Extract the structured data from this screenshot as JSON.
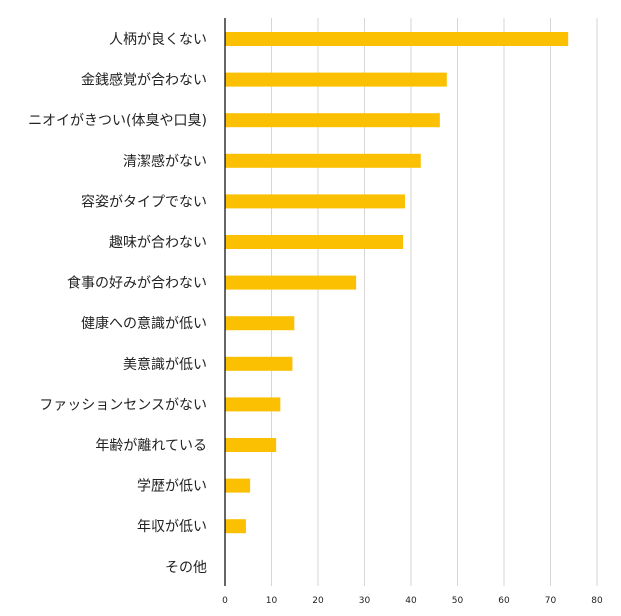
{
  "chart_data": {
    "type": "bar",
    "orientation": "horizontal",
    "categories": [
      "人柄が良くない",
      "金銭感覚が合わない",
      "ニオイがきつい(体臭や口臭)",
      "清潔感がない",
      "容姿がタイプでない",
      "趣味が合わない",
      "食事の好みが合わない",
      "健康への意識が低い",
      "美意識が低い",
      "ファッションセンスがない",
      "年齢が離れている",
      "学歴が低い",
      "年収が低い",
      "その他"
    ],
    "values": [
      73.8,
      47.7,
      46.2,
      42.1,
      38.7,
      38.3,
      28.2,
      14.9,
      14.5,
      11.9,
      11.0,
      5.4,
      4.5,
      0
    ],
    "xticks": [
      0,
      10,
      20,
      30,
      40,
      50,
      60,
      70,
      80
    ],
    "xlim": [
      0,
      80
    ],
    "grid": true,
    "colors": {
      "bar": "#FBC002",
      "grid": "#d6d6d6",
      "axis": "#000000",
      "text": "#222222"
    }
  }
}
